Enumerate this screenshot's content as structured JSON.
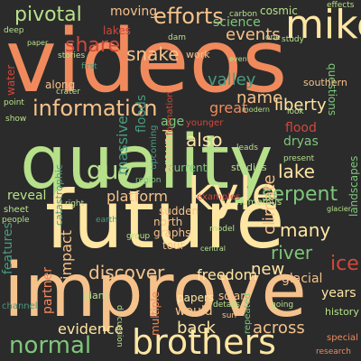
{
  "background": "#2b2b2b",
  "palette": {
    "orange": "#f08a5d",
    "peach": "#f6c28b",
    "cream": "#ffe6a3",
    "lightgreen": "#b7e08a",
    "green": "#7ec77b",
    "teal": "#4a9b7f",
    "red": "#d0483c",
    "darkgreen": "#3e8e5a"
  },
  "words": [
    {
      "text": "videos",
      "color": "#f08a5d"
    },
    {
      "text": "quality",
      "color": "#b7e08a"
    },
    {
      "text": "future",
      "color": "#ffe6a3"
    },
    {
      "text": "improve",
      "color": "#f6c28b"
    },
    {
      "text": "kyle",
      "color": "#ffe6a3"
    },
    {
      "text": "brothers",
      "color": "#ffe6a3"
    },
    {
      "text": "information",
      "color": "#f6c28b"
    },
    {
      "text": "mike",
      "color": "#ffe6a3"
    },
    {
      "text": "normal",
      "color": "#7ec77b"
    },
    {
      "text": "efforts",
      "color": "#f6c28b"
    },
    {
      "text": "guy",
      "color": "#b7e08a"
    },
    {
      "text": "serpent",
      "color": "#7ec77b"
    },
    {
      "text": "pivotal",
      "color": "#b7e08a"
    },
    {
      "text": "discover",
      "color": "#f6c28b"
    },
    {
      "text": "evidence",
      "color": "#ffe6a3"
    },
    {
      "text": "freedom",
      "color": "#ffe6a3"
    },
    {
      "text": "platform",
      "color": "#f6c28b"
    },
    {
      "text": "liberty",
      "color": "#ffe6a3"
    },
    {
      "text": "lake",
      "color": "#ffe6a3"
    },
    {
      "text": "share",
      "color": "#d0483c"
    },
    {
      "text": "snake",
      "color": "#f6c28b"
    },
    {
      "text": "moving",
      "color": "#f6c28b"
    },
    {
      "text": "events",
      "color": "#f6c28b"
    },
    {
      "text": "science",
      "color": "#7ec77b"
    },
    {
      "text": "name",
      "color": "#f6c28b"
    },
    {
      "text": "great",
      "color": "#f08a5d"
    },
    {
      "text": "also",
      "color": "#ffe6a3"
    },
    {
      "text": "many",
      "color": "#ffe6a3"
    },
    {
      "text": "river",
      "color": "#7ec77b"
    },
    {
      "text": "ice",
      "color": "#d0483c"
    },
    {
      "text": "new",
      "color": "#ffe6a3"
    },
    {
      "text": "back",
      "color": "#ffe6a3"
    },
    {
      "text": "across",
      "color": "#f6c28b"
    },
    {
      "text": "climate",
      "color": "#f6c28b"
    },
    {
      "text": "valley",
      "color": "#4a9b7f"
    },
    {
      "text": "massive",
      "color": "#4a9b7f"
    },
    {
      "text": "floods",
      "color": "#4a9b7f"
    },
    {
      "text": "impact",
      "color": "#f6c28b"
    },
    {
      "text": "partner",
      "color": "#f08a5d"
    },
    {
      "text": "features",
      "color": "#4a9b7f"
    },
    {
      "text": "years",
      "color": "#ffe6a3"
    },
    {
      "text": "glacial",
      "color": "#f6c28b"
    },
    {
      "text": "would",
      "color": "#f6c28b"
    },
    {
      "text": "current",
      "color": "#7ec77b"
    },
    {
      "text": "flood",
      "color": "#d0483c"
    },
    {
      "text": "dryas",
      "color": "#7ec77b"
    },
    {
      "text": "reveal",
      "color": "#b7e08a"
    },
    {
      "text": "history",
      "color": "#b7e08a"
    },
    {
      "text": "questions",
      "color": "#7ec77b"
    },
    {
      "text": "lakes",
      "color": "#d0483c"
    },
    {
      "text": "cosmic",
      "color": "#b7e08a"
    },
    {
      "text": "age",
      "color": "#7ec77b"
    },
    {
      "text": "around",
      "color": "#f6c28b"
    },
    {
      "text": "studies",
      "color": "#b7e08a"
    },
    {
      "text": "giant",
      "color": "#b7e08a"
    },
    {
      "text": "papers",
      "color": "#ffe6a3"
    },
    {
      "text": "north",
      "color": "#f6c28b"
    },
    {
      "text": "graphs",
      "color": "#f6c28b"
    },
    {
      "text": "tour",
      "color": "#f6c28b"
    },
    {
      "text": "sudden",
      "color": "#f6c28b"
    },
    {
      "text": "region",
      "color": "#7ec77b"
    },
    {
      "text": "examples",
      "color": "#d0483c"
    },
    {
      "text": "southern",
      "color": "#f6c28b"
    },
    {
      "text": "landscapes",
      "color": "#7ec77b"
    },
    {
      "text": "work",
      "color": "#f6c28b"
    },
    {
      "text": "formation",
      "color": "#d0483c"
    },
    {
      "text": "catastrophic",
      "color": "#4a9b7f"
    },
    {
      "text": "upcoming",
      "color": "#4a9b7f"
    },
    {
      "text": "numerous",
      "color": "#b7e08a"
    },
    {
      "text": "multiple",
      "color": "#f08a5d"
    },
    {
      "text": "solar",
      "color": "#f6c28b"
    },
    {
      "text": "along",
      "color": "#f6c28b"
    },
    {
      "text": "water",
      "color": "#d0483c"
    },
    {
      "text": "channel",
      "color": "#4a9b7f"
    },
    {
      "text": "effects",
      "color": "#b7e08a"
    },
    {
      "text": "special",
      "color": "#f08a5d"
    },
    {
      "text": "research",
      "color": "#f08a5d"
    },
    {
      "text": "discussion",
      "color": "#b7e08a"
    },
    {
      "text": "repeated",
      "color": "#7ec77b"
    },
    {
      "text": "point",
      "color": "#b7e08a"
    },
    {
      "text": "show",
      "color": "#b7e08a"
    },
    {
      "text": "crater",
      "color": "#b7e08a"
    },
    {
      "text": "stories",
      "color": "#b7e08a"
    },
    {
      "text": "sheet",
      "color": "#b7e08a"
    },
    {
      "text": "people",
      "color": "#b7e08a"
    },
    {
      "text": "deep",
      "color": "#b7e08a"
    },
    {
      "text": "paper",
      "color": "#b7e08a"
    },
    {
      "text": "dam",
      "color": "#b7e08a"
    },
    {
      "text": "study",
      "color": "#b7e08a"
    },
    {
      "text": "look",
      "color": "#b7e08a"
    },
    {
      "text": "present",
      "color": "#b7e08a"
    },
    {
      "text": "leads",
      "color": "#b7e08a"
    },
    {
      "text": "details",
      "color": "#b7e08a"
    },
    {
      "text": "model",
      "color": "#b7e08a"
    },
    {
      "text": "earth",
      "color": "#4a9b7f"
    },
    {
      "text": "group",
      "color": "#b7e08a"
    },
    {
      "text": "right",
      "color": "#b7e08a"
    },
    {
      "text": "going",
      "color": "#b7e08a"
    },
    {
      "text": "one",
      "color": "#b7e08a"
    },
    {
      "text": "first",
      "color": "#4a9b7f"
    },
    {
      "text": "sun",
      "color": "#f6c28b"
    },
    {
      "text": "glacier",
      "color": "#b7e08a"
    },
    {
      "text": "younger",
      "color": "#d0483c"
    },
    {
      "text": "carbon",
      "color": "#b7e08a"
    },
    {
      "text": "even",
      "color": "#b7e08a"
    },
    {
      "text": "central",
      "color": "#b7e08a"
    },
    {
      "text": "modern",
      "color": "#b7e08a"
    }
  ]
}
